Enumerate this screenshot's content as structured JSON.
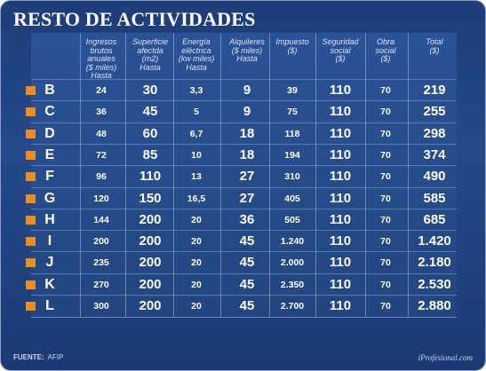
{
  "title": "RESTO DE ACTIVIDADES",
  "columns": [
    "Ingresos\nbrutos\nanuales\n($ miles)\nHasta",
    "Superficie\nafectda\n(m2)\nHasta",
    "Energía\neléctrica\n(kw miles)\nHasta",
    "Alquileres\n($ miles)\nHasta",
    "Impuesto\n($)",
    "Seguridad\nsocial\n($)",
    "Obra\nsocial\n($)",
    "Total\n($)"
  ],
  "rows": [
    {
      "cat": "B",
      "v": [
        "24",
        "30",
        "3,3",
        "9",
        "39",
        "110",
        "70",
        "219"
      ]
    },
    {
      "cat": "C",
      "v": [
        "36",
        "45",
        "5",
        "9",
        "75",
        "110",
        "70",
        "255"
      ]
    },
    {
      "cat": "D",
      "v": [
        "48",
        "60",
        "6,7",
        "18",
        "118",
        "110",
        "70",
        "298"
      ]
    },
    {
      "cat": "E",
      "v": [
        "72",
        "85",
        "10",
        "18",
        "194",
        "110",
        "70",
        "374"
      ]
    },
    {
      "cat": "F",
      "v": [
        "96",
        "110",
        "13",
        "27",
        "310",
        "110",
        "70",
        "490"
      ]
    },
    {
      "cat": "G",
      "v": [
        "120",
        "150",
        "16,5",
        "27",
        "405",
        "110",
        "70",
        "585"
      ]
    },
    {
      "cat": "H",
      "v": [
        "144",
        "200",
        "20",
        "36",
        "505",
        "110",
        "70",
        "685"
      ]
    },
    {
      "cat": "I",
      "v": [
        "200",
        "200",
        "20",
        "45",
        "1.240",
        "110",
        "70",
        "1.420"
      ]
    },
    {
      "cat": "J",
      "v": [
        "235",
        "200",
        "20",
        "45",
        "2.000",
        "110",
        "70",
        "2.180"
      ]
    },
    {
      "cat": "K",
      "v": [
        "270",
        "200",
        "20",
        "45",
        "2.350",
        "110",
        "70",
        "2.530"
      ]
    },
    {
      "cat": "L",
      "v": [
        "300",
        "200",
        "20",
        "45",
        "2.700",
        "110",
        "70",
        "2.880"
      ]
    }
  ],
  "source_label": "FUENTE:",
  "source_value": "AFIP",
  "brand": "iProfesional.com",
  "colors": {
    "accent": "#f08c1a",
    "background": "#1d3d78"
  }
}
